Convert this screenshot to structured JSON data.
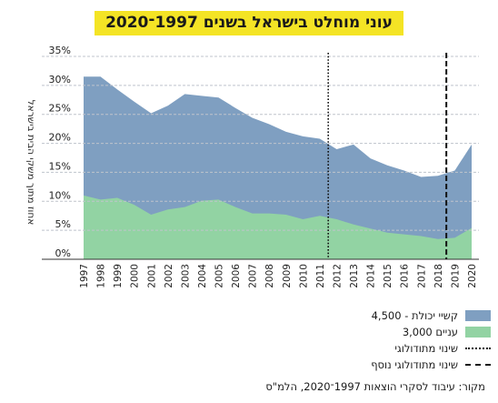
{
  "title": "עוני מוחלט בישראל בשנים 1997־2020",
  "source": "מקור: עיבוד לסקרי הוצאות 1997־2020, הלמ\"ס",
  "colors": {
    "blue": "#7f9fc1",
    "green": "#92d3a3",
    "grid": "#bfc4cc",
    "title_bg": "#f4e425"
  },
  "chart_data": {
    "type": "area",
    "ylabel": "אחוז מתוך משקי הבית בישראל",
    "ylim": [
      0,
      35
    ],
    "yticks": [
      "0%",
      "5%",
      "10%",
      "15%",
      "20%",
      "25%",
      "30%",
      "35%"
    ],
    "categories": [
      "1997",
      "1998",
      "1999",
      "2000",
      "2001",
      "2002",
      "2003",
      "2004",
      "2005",
      "2006",
      "2007",
      "2008",
      "2009",
      "2010",
      "2011",
      "2012",
      "2013",
      "2014",
      "2015",
      "2016",
      "2017",
      "2018",
      "2019",
      "2020"
    ],
    "series": [
      {
        "name": "קשיי יכולת - 4,500",
        "color": "#7f9fc1",
        "values": [
          31.5,
          31.5,
          29.3,
          27.2,
          25.2,
          26.5,
          28.5,
          28.2,
          27.9,
          26.1,
          24.4,
          23.3,
          22.0,
          21.2,
          20.8,
          19.0,
          19.8,
          17.4,
          16.2,
          15.3,
          14.2,
          14.4,
          15.3,
          19.8
        ]
      },
      {
        "name": "עניים 3,000",
        "color": "#92d3a3",
        "values": [
          11.0,
          10.3,
          10.6,
          9.4,
          7.7,
          8.6,
          9.0,
          10.1,
          10.3,
          9.0,
          7.9,
          7.9,
          7.7,
          6.9,
          7.5,
          6.9,
          6.0,
          5.3,
          4.6,
          4.3,
          4.0,
          3.5,
          3.7,
          5.4
        ]
      }
    ],
    "vlines": [
      {
        "label": "שינוי מתודולוגי",
        "x": "2011.5",
        "style": "dotted"
      },
      {
        "label": "שינוי מתודולוגי נוסף",
        "x": "2018.5",
        "style": "dashed"
      }
    ],
    "grid": true,
    "legend_position": "bottom-right"
  }
}
